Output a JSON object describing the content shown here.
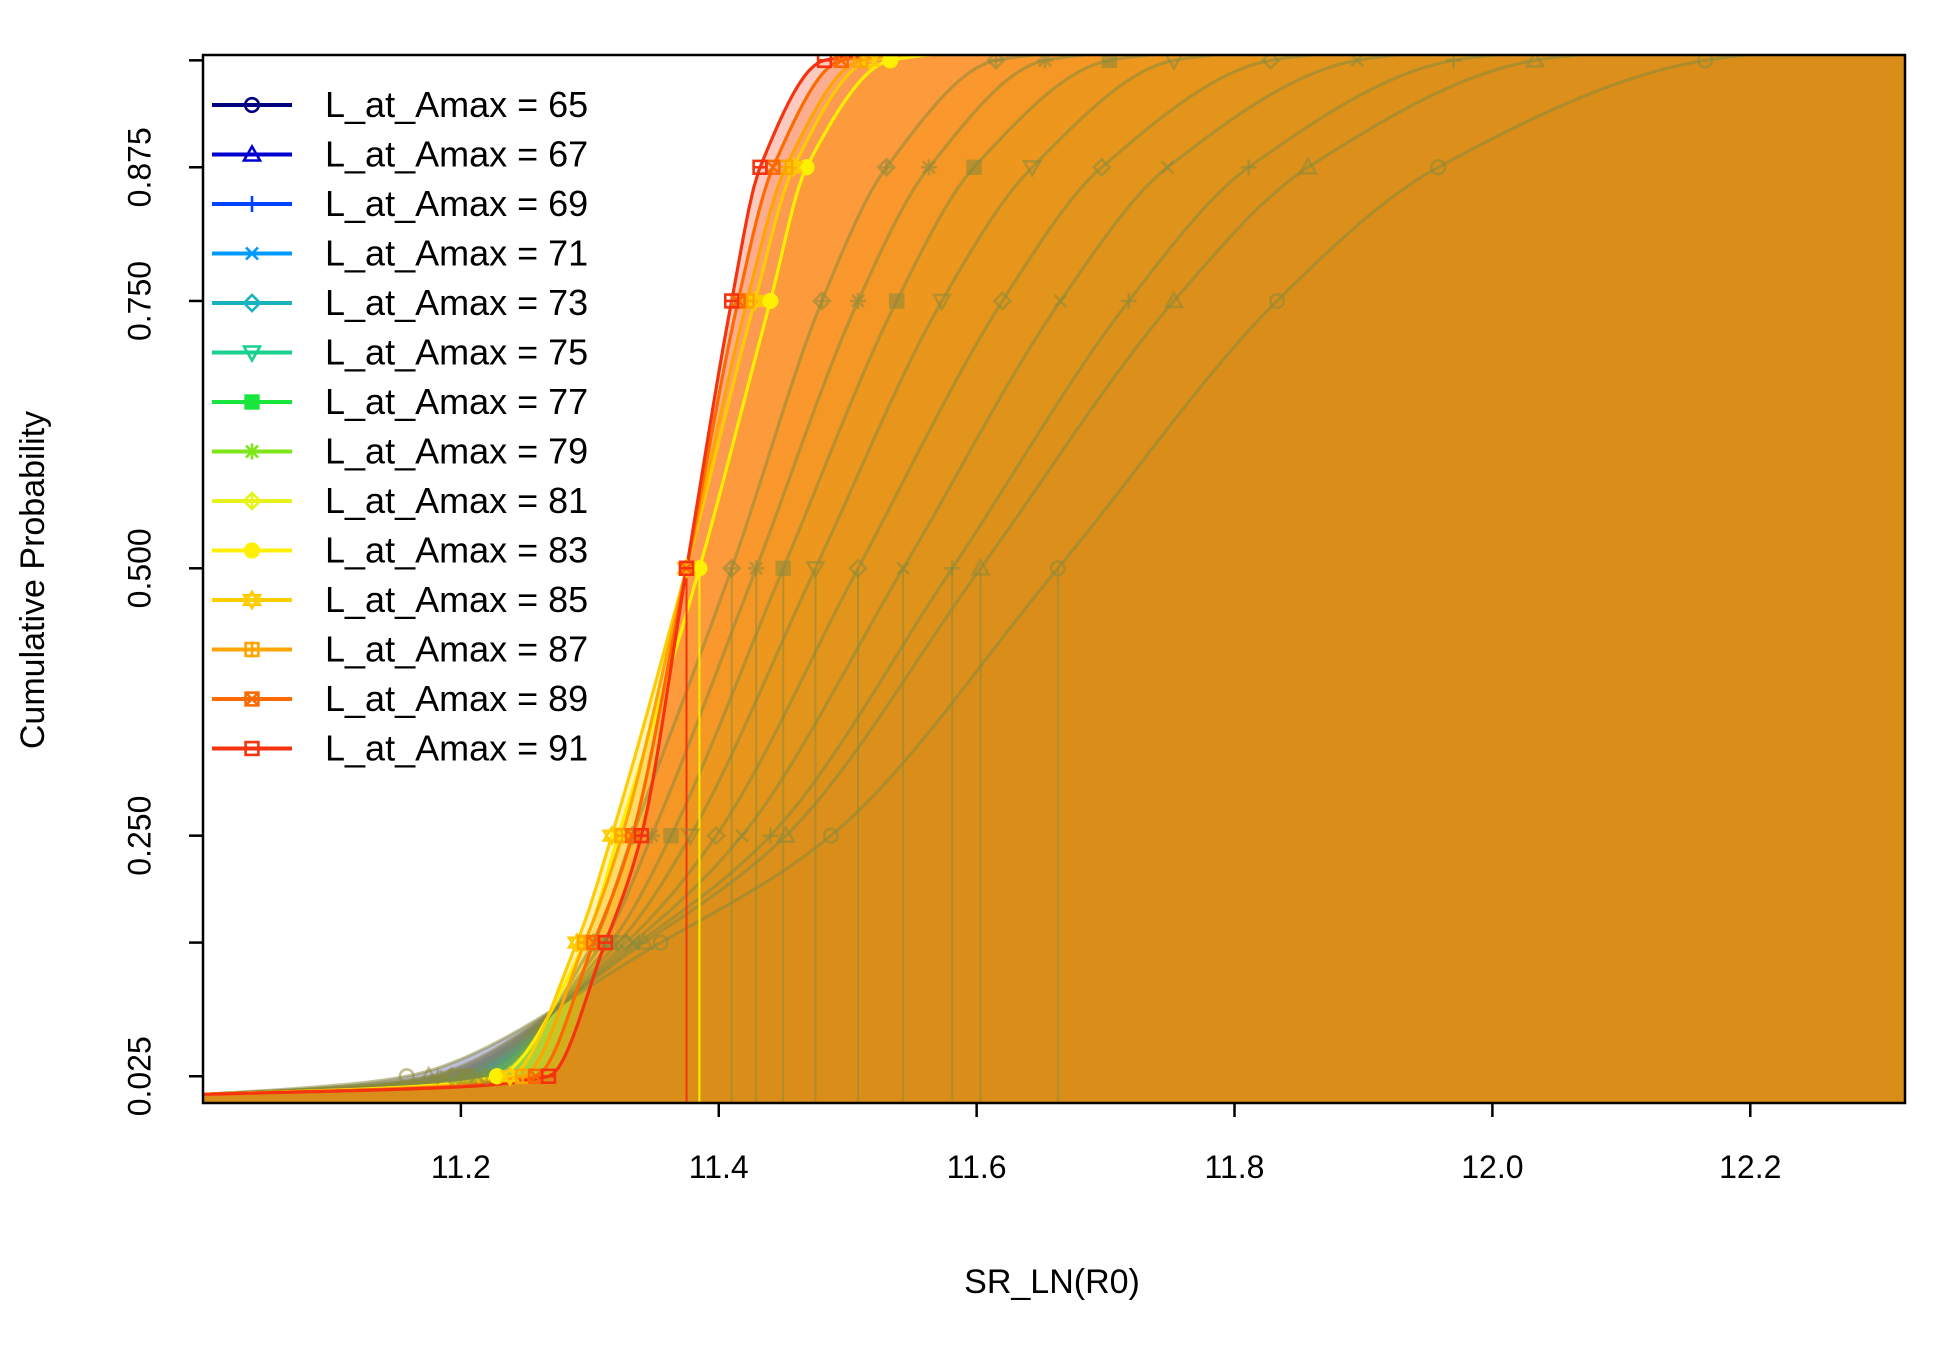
{
  "chart_data": {
    "type": "line",
    "title": "",
    "xlabel": "SR_LN(R0)",
    "ylabel": "Cumulative Probability",
    "xlim": [
      11.0,
      12.32
    ],
    "ylim": [
      0.0,
      0.98
    ],
    "xticks": [
      "11.2",
      "11.4",
      "11.6",
      "11.8",
      "12.0",
      "12.2"
    ],
    "yticks": [
      "0.025",
      "0.250",
      "0.500",
      "0.750",
      "0.875"
    ],
    "ytick_unlabeled": [
      0.15,
      0.975
    ],
    "marker_probabilities": [
      0.025,
      0.15,
      0.25,
      0.5,
      0.75,
      0.875,
      0.975
    ],
    "legend_position": "top-left",
    "grid": false,
    "series": [
      {
        "name": "L_at_Amax = 65",
        "color": "#00007F",
        "marker": "circle",
        "quantiles": [
          11.158,
          11.355,
          11.487,
          11.663,
          11.833,
          11.958,
          12.165
        ]
      },
      {
        "name": "L_at_Amax = 67",
        "color": "#0000D0",
        "marker": "triangle",
        "quantiles": [
          11.175,
          11.342,
          11.452,
          11.603,
          11.753,
          11.857,
          12.033
        ]
      },
      {
        "name": "L_at_Amax = 69",
        "color": "#0044FF",
        "marker": "plus",
        "quantiles": [
          11.182,
          11.338,
          11.44,
          11.581,
          11.718,
          11.811,
          11.97
        ]
      },
      {
        "name": "L_at_Amax = 71",
        "color": "#0099FF",
        "marker": "x",
        "quantiles": [
          11.188,
          11.333,
          11.418,
          11.543,
          11.665,
          11.748,
          11.895
        ]
      },
      {
        "name": "L_at_Amax = 73",
        "color": "#19B3C0",
        "marker": "diamond",
        "quantiles": [
          11.193,
          11.328,
          11.398,
          11.508,
          11.62,
          11.697,
          11.828
        ]
      },
      {
        "name": "L_at_Amax = 75",
        "color": "#19D08C",
        "marker": "triangle-down",
        "quantiles": [
          11.198,
          11.322,
          11.378,
          11.475,
          11.573,
          11.643,
          11.753
        ]
      },
      {
        "name": "L_at_Amax = 77",
        "color": "#19E63C",
        "marker": "square",
        "quantiles": [
          11.205,
          11.316,
          11.363,
          11.45,
          11.538,
          11.598,
          11.703
        ]
      },
      {
        "name": "L_at_Amax = 79",
        "color": "#7FE619",
        "marker": "asterisk",
        "quantiles": [
          11.212,
          11.31,
          11.348,
          11.429,
          11.508,
          11.563,
          11.653
        ]
      },
      {
        "name": "L_at_Amax = 81",
        "color": "#E6F219",
        "marker": "diamond-plus",
        "quantiles": [
          11.22,
          11.303,
          11.333,
          11.41,
          11.48,
          11.53,
          11.615
        ]
      },
      {
        "name": "L_at_Amax = 83",
        "color": "#FFF000",
        "marker": "circle-plus",
        "quantiles": [
          11.228,
          11.296,
          11.322,
          11.385,
          11.44,
          11.468,
          11.533
        ]
      },
      {
        "name": "L_at_Amax = 85",
        "color": "#FFCC00",
        "marker": "star-of-david",
        "quantiles": [
          11.238,
          11.29,
          11.317,
          11.375,
          11.428,
          11.458,
          11.517
        ]
      },
      {
        "name": "L_at_Amax = 87",
        "color": "#FFA500",
        "marker": "square-plus",
        "quantiles": [
          11.248,
          11.296,
          11.325,
          11.375,
          11.422,
          11.452,
          11.51
        ]
      },
      {
        "name": "L_at_Amax = 89",
        "color": "#FF6A00",
        "marker": "square-x",
        "quantiles": [
          11.258,
          11.303,
          11.333,
          11.375,
          11.415,
          11.442,
          11.495
        ]
      },
      {
        "name": "L_at_Amax = 91",
        "color": "#F5330F",
        "marker": "square-cross",
        "quantiles": [
          11.268,
          11.312,
          11.34,
          11.375,
          11.41,
          11.432,
          11.482
        ]
      }
    ]
  }
}
